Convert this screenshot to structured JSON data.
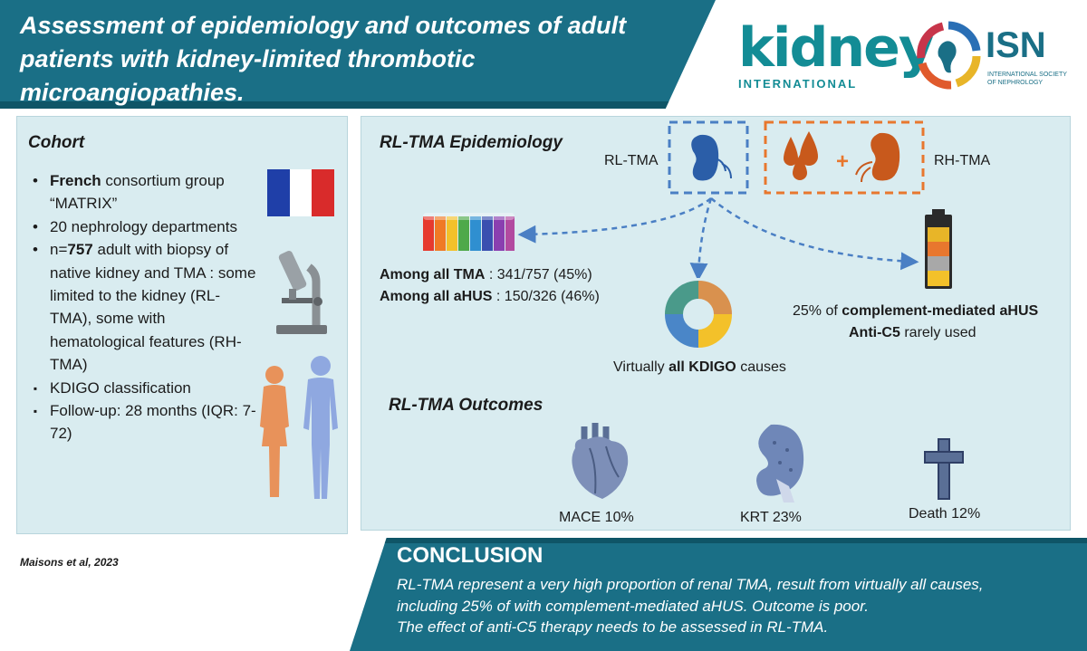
{
  "header": {
    "title": "Assessment of epidemiology and outcomes of adult patients with kidney-limited thrombotic microangiopathies.",
    "kidney_logo": {
      "word": "kidney",
      "sub": "INTERNATIONAL"
    },
    "isn_logo": {
      "abbr": "ISN",
      "full": "International Society of Nephrology"
    }
  },
  "cohort": {
    "title": "Cohort",
    "items": [
      {
        "bullet": "•",
        "pre": "",
        "bold": "French",
        "post": " consortium group “MATRIX”"
      },
      {
        "bullet": "•",
        "pre": "20 nephrology departments",
        "bold": "",
        "post": ""
      },
      {
        "bullet": "•",
        "pre": "n=",
        "bold": "757",
        "post": " adult with biopsy of native kidney and TMA : some limited to the kidney (RL-TMA), some with hematological features (RH-TMA)"
      },
      {
        "bullet": "▪",
        "pre": "KDIGO classification",
        "bold": "",
        "post": ""
      },
      {
        "bullet": "▪",
        "pre": "Follow-up: 28 months (IQR: 7-72)",
        "bold": "",
        "post": ""
      }
    ]
  },
  "epidemiology": {
    "title": "RL-TMA Epidemiology",
    "rl_label": "RL-TMA",
    "rh_label": "RH-TMA",
    "plus": "+",
    "among_tma": {
      "bold": "Among all TMA",
      "rest": " : 341/757 (45%)"
    },
    "among_ahus": {
      "bold": "Among all aHUS",
      "rest": " : 150/326 (46%)"
    },
    "kdigo": {
      "pre": "Virtually ",
      "bold": "all KDIGO",
      "post": " causes"
    },
    "complement": {
      "pre": "25% of ",
      "bold": "complement-mediated aHUS"
    },
    "anti_c5": {
      "bold": "Anti-C5",
      "post": " rarely used"
    }
  },
  "outcomes": {
    "title": "RL-TMA Outcomes",
    "items": [
      {
        "label": "MACE 10%",
        "icon": "heart-icon"
      },
      {
        "label": "KRT 23%",
        "icon": "kidney-icon"
      },
      {
        "label": "Death 12%",
        "icon": "cross-icon"
      }
    ]
  },
  "footer": {
    "reference": "Maisons et al, 2023",
    "conclusion_title": "CONCLUSION",
    "conclusion_lines": [
      "RL-TMA represent a very high proportion of renal TMA, result from virtually all causes,",
      "including 25% of with complement-mediated aHUS. Outcome is poor.",
      "The effect of anti-C5 therapy needs to be assessed in RL-TMA."
    ]
  },
  "colors": {
    "teal": "#1a6f86",
    "panel": "#d9ecf0",
    "dashed_blue": "#4a7fc4",
    "dashed_orange": "#e8772e",
    "kidney_orange": "#c8591c"
  }
}
